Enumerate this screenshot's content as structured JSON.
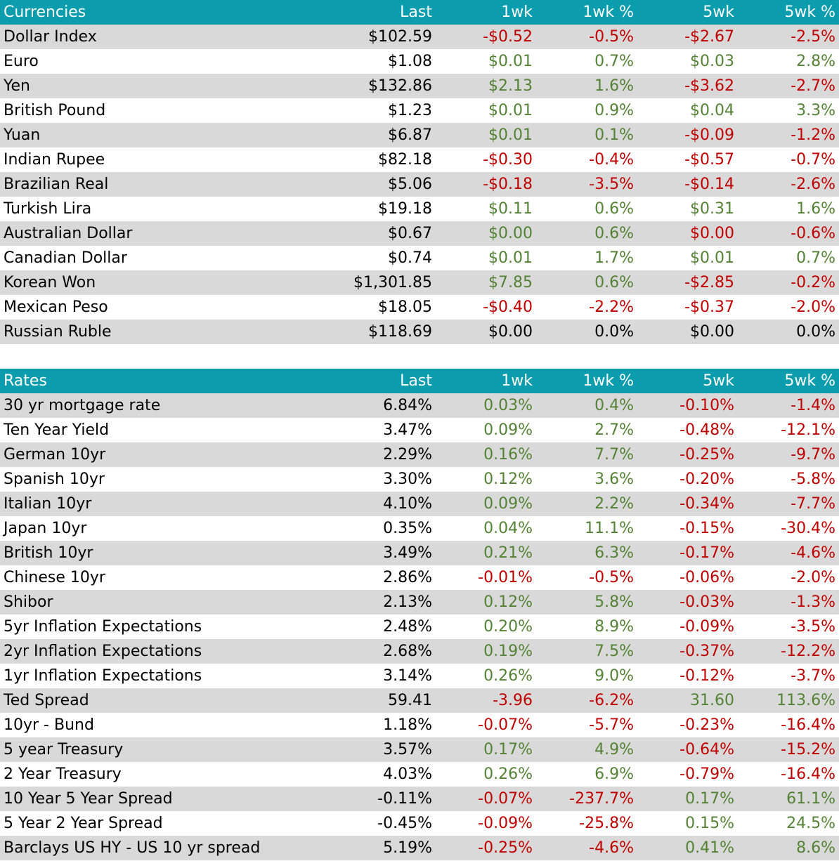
{
  "currencies": {
    "headers": [
      "Currencies",
      "Last",
      "1wk",
      "1wk %",
      "5wk",
      "5wk %"
    ],
    "rows": [
      {
        "name": "Dollar Index",
        "last": "$102.59",
        "wk1": "-$0.52",
        "wk1p": "-0.5%",
        "wk5": "-$2.67",
        "wk5p": "-2.5%",
        "c": [
          "neg",
          "neg",
          "neg",
          "neg"
        ]
      },
      {
        "name": "Euro",
        "last": "$1.08",
        "wk1": "$0.01",
        "wk1p": "0.7%",
        "wk5": "$0.03",
        "wk5p": "2.8%",
        "c": [
          "pos",
          "pos",
          "pos",
          "pos"
        ]
      },
      {
        "name": "Yen",
        "last": "$132.86",
        "wk1": "$2.13",
        "wk1p": "1.6%",
        "wk5": "-$3.62",
        "wk5p": "-2.7%",
        "c": [
          "pos",
          "pos",
          "neg",
          "neg"
        ]
      },
      {
        "name": "British Pound",
        "last": "$1.23",
        "wk1": "$0.01",
        "wk1p": "0.9%",
        "wk5": "$0.04",
        "wk5p": "3.3%",
        "c": [
          "pos",
          "pos",
          "pos",
          "pos"
        ]
      },
      {
        "name": "Yuan",
        "last": "$6.87",
        "wk1": "$0.01",
        "wk1p": "0.1%",
        "wk5": "-$0.09",
        "wk5p": "-1.2%",
        "c": [
          "pos",
          "pos",
          "neg",
          "neg"
        ]
      },
      {
        "name": "Indian Rupee",
        "last": "$82.18",
        "wk1": "-$0.30",
        "wk1p": "-0.4%",
        "wk5": "-$0.57",
        "wk5p": "-0.7%",
        "c": [
          "neg",
          "neg",
          "neg",
          "neg"
        ]
      },
      {
        "name": "Brazilian Real",
        "last": "$5.06",
        "wk1": "-$0.18",
        "wk1p": "-3.5%",
        "wk5": "-$0.14",
        "wk5p": "-2.6%",
        "c": [
          "neg",
          "neg",
          "neg",
          "neg"
        ]
      },
      {
        "name": "Turkish Lira",
        "last": "$19.18",
        "wk1": "$0.11",
        "wk1p": "0.6%",
        "wk5": "$0.31",
        "wk5p": "1.6%",
        "c": [
          "pos",
          "pos",
          "pos",
          "pos"
        ]
      },
      {
        "name": "Australian Dollar",
        "last": "$0.67",
        "wk1": "$0.00",
        "wk1p": "0.6%",
        "wk5": "$0.00",
        "wk5p": "-0.6%",
        "c": [
          "pos",
          "pos",
          "neg",
          "neg"
        ]
      },
      {
        "name": "Canadian Dollar",
        "last": "$0.74",
        "wk1": "$0.01",
        "wk1p": "1.7%",
        "wk5": "$0.01",
        "wk5p": "0.7%",
        "c": [
          "pos",
          "pos",
          "pos",
          "pos"
        ]
      },
      {
        "name": "Korean Won",
        "last": "$1,301.85",
        "wk1": "$7.85",
        "wk1p": "0.6%",
        "wk5": "-$2.85",
        "wk5p": "-0.2%",
        "c": [
          "pos",
          "pos",
          "neg",
          "neg"
        ]
      },
      {
        "name": "Mexican Peso",
        "last": "$18.05",
        "wk1": "-$0.40",
        "wk1p": "-2.2%",
        "wk5": "-$0.37",
        "wk5p": "-2.0%",
        "c": [
          "neg",
          "neg",
          "neg",
          "neg"
        ]
      },
      {
        "name": "Russian Ruble",
        "last": "$118.69",
        "wk1": "$0.00",
        "wk1p": "0.0%",
        "wk5": "$0.00",
        "wk5p": "0.0%",
        "c": [
          "neu",
          "neu",
          "neu",
          "neu"
        ]
      }
    ]
  },
  "rates": {
    "headers": [
      "Rates",
      "Last",
      "1wk",
      "1wk %",
      "5wk",
      "5wk %"
    ],
    "rows": [
      {
        "name": "30 yr mortgage rate",
        "last": "6.84%",
        "wk1": "0.03%",
        "wk1p": "0.4%",
        "wk5": "-0.10%",
        "wk5p": "-1.4%",
        "c": [
          "pos",
          "pos",
          "neg",
          "neg"
        ]
      },
      {
        "name": "Ten Year Yield",
        "last": "3.47%",
        "wk1": "0.09%",
        "wk1p": "2.7%",
        "wk5": "-0.48%",
        "wk5p": "-12.1%",
        "c": [
          "pos",
          "pos",
          "neg",
          "neg"
        ]
      },
      {
        "name": "German 10yr",
        "last": "2.29%",
        "wk1": "0.16%",
        "wk1p": "7.7%",
        "wk5": "-0.25%",
        "wk5p": "-9.7%",
        "c": [
          "pos",
          "pos",
          "neg",
          "neg"
        ]
      },
      {
        "name": "Spanish 10yr",
        "last": "3.30%",
        "wk1": "0.12%",
        "wk1p": "3.6%",
        "wk5": "-0.20%",
        "wk5p": "-5.8%",
        "c": [
          "pos",
          "pos",
          "neg",
          "neg"
        ]
      },
      {
        "name": "Italian 10yr",
        "last": "4.10%",
        "wk1": "0.09%",
        "wk1p": "2.2%",
        "wk5": "-0.34%",
        "wk5p": "-7.7%",
        "c": [
          "pos",
          "pos",
          "neg",
          "neg"
        ]
      },
      {
        "name": "Japan 10yr",
        "last": "0.35%",
        "wk1": "0.04%",
        "wk1p": "11.1%",
        "wk5": "-0.15%",
        "wk5p": "-30.4%",
        "c": [
          "pos",
          "pos",
          "neg",
          "neg"
        ]
      },
      {
        "name": "British 10yr",
        "last": "3.49%",
        "wk1": "0.21%",
        "wk1p": "6.3%",
        "wk5": "-0.17%",
        "wk5p": "-4.6%",
        "c": [
          "pos",
          "pos",
          "neg",
          "neg"
        ]
      },
      {
        "name": "Chinese 10yr",
        "last": "2.86%",
        "wk1": "-0.01%",
        "wk1p": "-0.5%",
        "wk5": "-0.06%",
        "wk5p": "-2.0%",
        "c": [
          "neg",
          "neg",
          "neg",
          "neg"
        ]
      },
      {
        "name": "Shibor",
        "last": "2.13%",
        "wk1": "0.12%",
        "wk1p": "5.8%",
        "wk5": "-0.03%",
        "wk5p": "-1.3%",
        "c": [
          "pos",
          "pos",
          "neg",
          "neg"
        ]
      },
      {
        "name": "5yr Inflation Expectations",
        "last": "2.48%",
        "wk1": "0.20%",
        "wk1p": "8.9%",
        "wk5": "-0.09%",
        "wk5p": "-3.5%",
        "c": [
          "pos",
          "pos",
          "neg",
          "neg"
        ]
      },
      {
        "name": "2yr Inflation Expectations",
        "last": "2.68%",
        "wk1": "0.19%",
        "wk1p": "7.5%",
        "wk5": "-0.37%",
        "wk5p": "-12.2%",
        "c": [
          "pos",
          "pos",
          "neg",
          "neg"
        ]
      },
      {
        "name": "1yr Inflation Expectations",
        "last": "3.14%",
        "wk1": "0.26%",
        "wk1p": "9.0%",
        "wk5": "-0.12%",
        "wk5p": "-3.7%",
        "c": [
          "pos",
          "pos",
          "neg",
          "neg"
        ]
      },
      {
        "name": "Ted Spread",
        "last": "59.41",
        "wk1": "-3.96",
        "wk1p": "-6.2%",
        "wk5": "31.60",
        "wk5p": "113.6%",
        "c": [
          "neg",
          "neg",
          "pos",
          "pos"
        ]
      },
      {
        "name": "10yr - Bund",
        "last": "1.18%",
        "wk1": "-0.07%",
        "wk1p": "-5.7%",
        "wk5": "-0.23%",
        "wk5p": "-16.4%",
        "c": [
          "neg",
          "neg",
          "neg",
          "neg"
        ]
      },
      {
        "name": "5 year Treasury",
        "last": "3.57%",
        "wk1": "0.17%",
        "wk1p": "4.9%",
        "wk5": "-0.64%",
        "wk5p": "-15.2%",
        "c": [
          "pos",
          "pos",
          "neg",
          "neg"
        ]
      },
      {
        "name": "2 Year Treasury",
        "last": "4.03%",
        "wk1": "0.26%",
        "wk1p": "6.9%",
        "wk5": "-0.79%",
        "wk5p": "-16.4%",
        "c": [
          "pos",
          "pos",
          "neg",
          "neg"
        ]
      },
      {
        "name": "10 Year 5 Year Spread",
        "last": "-0.11%",
        "wk1": "-0.07%",
        "wk1p": "-237.7%",
        "wk5": "0.17%",
        "wk5p": "61.1%",
        "c": [
          "neg",
          "neg",
          "pos",
          "pos"
        ]
      },
      {
        "name": "5 Year 2 Year Spread",
        "last": "-0.45%",
        "wk1": "-0.09%",
        "wk1p": "-25.8%",
        "wk5": "0.15%",
        "wk5p": "24.5%",
        "c": [
          "neg",
          "neg",
          "pos",
          "pos"
        ]
      },
      {
        "name": "Barclays US HY - US 10 yr spread",
        "last": "5.19%",
        "wk1": "-0.25%",
        "wk1p": "-4.6%",
        "wk5": "0.41%",
        "wk5p": "8.6%",
        "c": [
          "neg",
          "neg",
          "pos",
          "pos"
        ]
      }
    ]
  },
  "colors": {
    "header_bg": "#0b9cae",
    "header_text": "#ffffff",
    "band_bg": "#d9d9d9",
    "positive": "#548235",
    "negative": "#c00000",
    "neutral": "#000000"
  }
}
